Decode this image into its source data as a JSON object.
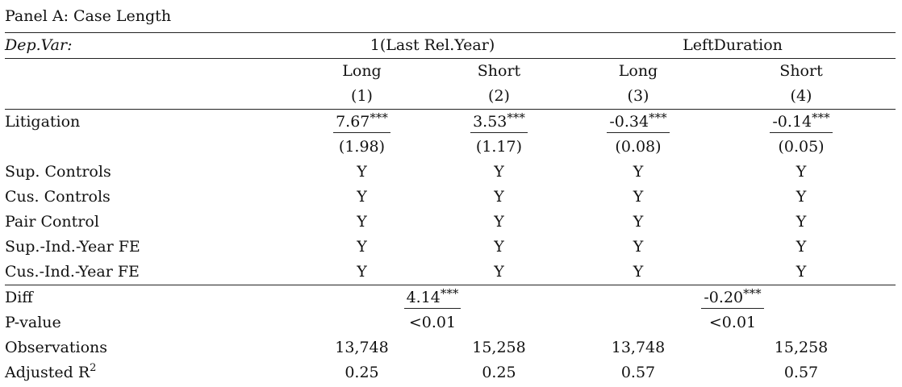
{
  "panel_title": "Panel A: Case Length",
  "header": {
    "dep_var_label": "Dep.Var:",
    "group1": "1(Last Rel.Year)",
    "group2": "LeftDuration",
    "subheads": [
      "Long",
      "Short",
      "Long",
      "Short"
    ],
    "col_numbers": [
      "(1)",
      "(2)",
      "(3)",
      "(4)"
    ]
  },
  "litigation": {
    "label": "Litigation",
    "coefs": [
      "7.67",
      "3.53",
      "-0.34",
      "-0.14"
    ],
    "stars": [
      "***",
      "***",
      "***",
      "***"
    ],
    "ses": [
      "(1.98)",
      "(1.17)",
      "(0.08)",
      "(0.05)"
    ]
  },
  "controls": [
    {
      "label": "Sup. Controls",
      "values": [
        "Y",
        "Y",
        "Y",
        "Y"
      ]
    },
    {
      "label": "Cus. Controls",
      "values": [
        "Y",
        "Y",
        "Y",
        "Y"
      ]
    },
    {
      "label": "Pair Control",
      "values": [
        "Y",
        "Y",
        "Y",
        "Y"
      ]
    },
    {
      "label": "Sup.-Ind.-Year FE",
      "values": [
        "Y",
        "Y",
        "Y",
        "Y"
      ]
    },
    {
      "label": "Cus.-Ind.-Year FE",
      "values": [
        "Y",
        "Y",
        "Y",
        "Y"
      ]
    }
  ],
  "diff": {
    "label": "Diff",
    "values": [
      "4.14",
      "-0.20"
    ],
    "stars": [
      "***",
      "***"
    ]
  },
  "pvalue": {
    "label": "P-value",
    "values": [
      "<0.01",
      "<0.01"
    ]
  },
  "observations": {
    "label": "Observations",
    "values": [
      "13,748",
      "15,258",
      "13,748",
      "15,258"
    ]
  },
  "adjusted_r2": {
    "label_main": "Adjusted R",
    "label_sup": "2",
    "values": [
      "0.25",
      "0.25",
      "0.57",
      "0.57"
    ]
  }
}
